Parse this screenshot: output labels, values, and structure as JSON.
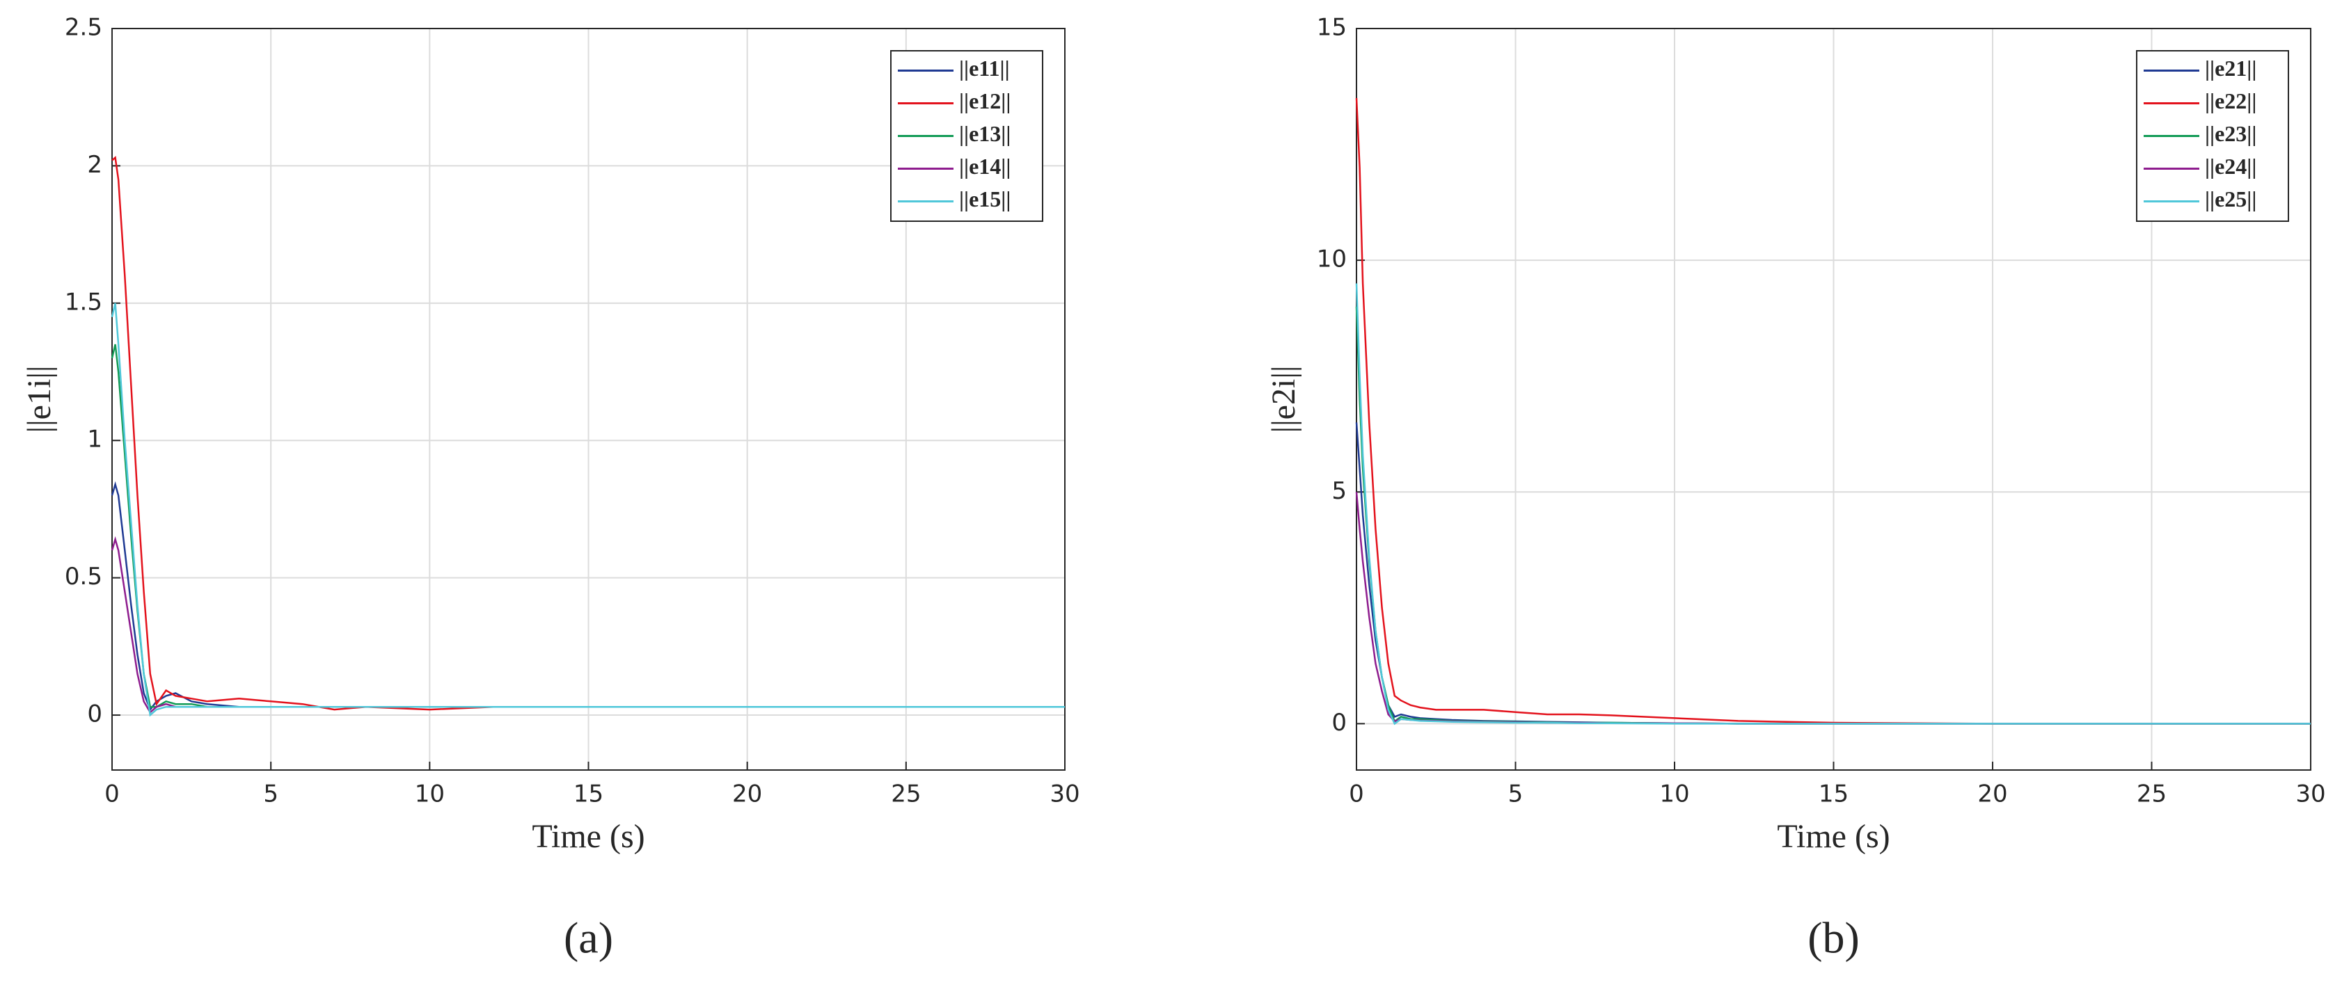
{
  "chart_data": [
    {
      "type": "line",
      "caption": "(a)",
      "xlabel": "Time (s)",
      "ylabel": "||e1i||",
      "xlim": [
        0,
        30
      ],
      "ylim": [
        -0.2,
        2.5
      ],
      "xticks": [
        0,
        5,
        10,
        15,
        20,
        25,
        30
      ],
      "yticks": [
        0,
        0.5,
        1,
        1.5,
        2,
        2.5
      ],
      "grid": true,
      "legend": "upper right",
      "x": [
        0,
        0.1,
        0.2,
        0.4,
        0.6,
        0.8,
        1.0,
        1.2,
        1.4,
        1.7,
        2,
        2.5,
        3,
        4,
        5,
        6,
        7,
        8,
        10,
        12,
        15,
        20,
        25,
        30
      ],
      "series": [
        {
          "name": "||e11||",
          "color": "#1f3a93",
          "values": [
            0.8,
            0.84,
            0.8,
            0.6,
            0.4,
            0.22,
            0.08,
            0.02,
            0.05,
            0.07,
            0.08,
            0.05,
            0.04,
            0.03,
            0.03,
            0.03,
            0.03,
            0.03,
            0.03,
            0.03,
            0.03,
            0.03,
            0.03,
            0.03
          ]
        },
        {
          "name": "||e12||",
          "color": "#e3121c",
          "values": [
            2.02,
            2.03,
            1.95,
            1.6,
            1.2,
            0.8,
            0.45,
            0.15,
            0.04,
            0.09,
            0.07,
            0.06,
            0.05,
            0.06,
            0.05,
            0.04,
            0.02,
            0.03,
            0.02,
            0.03,
            0.03,
            0.03,
            0.03,
            0.03
          ]
        },
        {
          "name": "||e13||",
          "color": "#119a55",
          "values": [
            1.3,
            1.35,
            1.25,
            0.95,
            0.65,
            0.38,
            0.15,
            0.03,
            0.03,
            0.05,
            0.04,
            0.04,
            0.03,
            0.03,
            0.03,
            0.03,
            0.03,
            0.03,
            0.03,
            0.03,
            0.03,
            0.03,
            0.03,
            0.03
          ]
        },
        {
          "name": "||e14||",
          "color": "#8e1c8e",
          "values": [
            0.6,
            0.64,
            0.6,
            0.45,
            0.3,
            0.15,
            0.05,
            0.01,
            0.03,
            0.04,
            0.03,
            0.03,
            0.03,
            0.03,
            0.03,
            0.03,
            0.03,
            0.03,
            0.03,
            0.03,
            0.03,
            0.03,
            0.03,
            0.03
          ]
        },
        {
          "name": "||e15||",
          "color": "#4fc7d9",
          "values": [
            1.45,
            1.5,
            1.35,
            1.0,
            0.7,
            0.4,
            0.15,
            0.0,
            0.02,
            0.03,
            0.03,
            0.03,
            0.03,
            0.03,
            0.03,
            0.03,
            0.03,
            0.03,
            0.03,
            0.03,
            0.03,
            0.03,
            0.03,
            0.03
          ]
        }
      ]
    },
    {
      "type": "line",
      "caption": "(b)",
      "xlabel": "Time (s)",
      "ylabel": "||e2i||",
      "xlim": [
        0,
        30
      ],
      "ylim": [
        -1,
        15
      ],
      "xticks": [
        0,
        5,
        10,
        15,
        20,
        25,
        30
      ],
      "yticks": [
        0,
        5,
        10,
        15
      ],
      "grid": true,
      "legend": "upper right",
      "x": [
        0,
        0.1,
        0.2,
        0.4,
        0.6,
        0.8,
        1.0,
        1.2,
        1.4,
        1.7,
        2,
        2.5,
        3,
        4,
        5,
        6,
        7,
        8,
        10,
        12,
        15,
        20,
        25,
        30
      ],
      "series": [
        {
          "name": "||e21||",
          "color": "#1f3a93",
          "values": [
            6.5,
            5.5,
            4.5,
            3,
            1.8,
            1,
            0.4,
            0.15,
            0.2,
            0.15,
            0.12,
            0.1,
            0.08,
            0.06,
            0.05,
            0.04,
            0.03,
            0.02,
            0.01,
            0,
            0,
            0,
            0,
            0
          ]
        },
        {
          "name": "||e22||",
          "color": "#e3121c",
          "values": [
            13.5,
            12,
            9.5,
            6.5,
            4.2,
            2.5,
            1.3,
            0.6,
            0.5,
            0.4,
            0.35,
            0.3,
            0.3,
            0.3,
            0.25,
            0.2,
            0.2,
            0.18,
            0.12,
            0.06,
            0.02,
            0,
            0,
            0
          ]
        },
        {
          "name": "||e23||",
          "color": "#119a55",
          "values": [
            9,
            7,
            5.5,
            3.5,
            2,
            1,
            0.4,
            0.05,
            0.15,
            0.1,
            0.1,
            0.08,
            0.06,
            0.05,
            0.04,
            0.03,
            0.02,
            0.02,
            0.01,
            0,
            0,
            0,
            0,
            0
          ]
        },
        {
          "name": "||e24||",
          "color": "#8e1c8e",
          "values": [
            5,
            4.2,
            3.5,
            2.3,
            1.3,
            0.7,
            0.2,
            0.05,
            0.1,
            0.08,
            0.07,
            0.06,
            0.05,
            0.04,
            0.03,
            0.02,
            0.02,
            0.01,
            0.01,
            0,
            0,
            0,
            0,
            0
          ]
        },
        {
          "name": "||e25||",
          "color": "#4fc7d9",
          "values": [
            9.5,
            7.5,
            5.8,
            3.6,
            2,
            1,
            0.3,
            0.0,
            0.1,
            0.08,
            0.06,
            0.05,
            0.04,
            0.03,
            0.02,
            0.02,
            0.01,
            0.01,
            0,
            0,
            0,
            0,
            0,
            0
          ]
        }
      ]
    }
  ]
}
